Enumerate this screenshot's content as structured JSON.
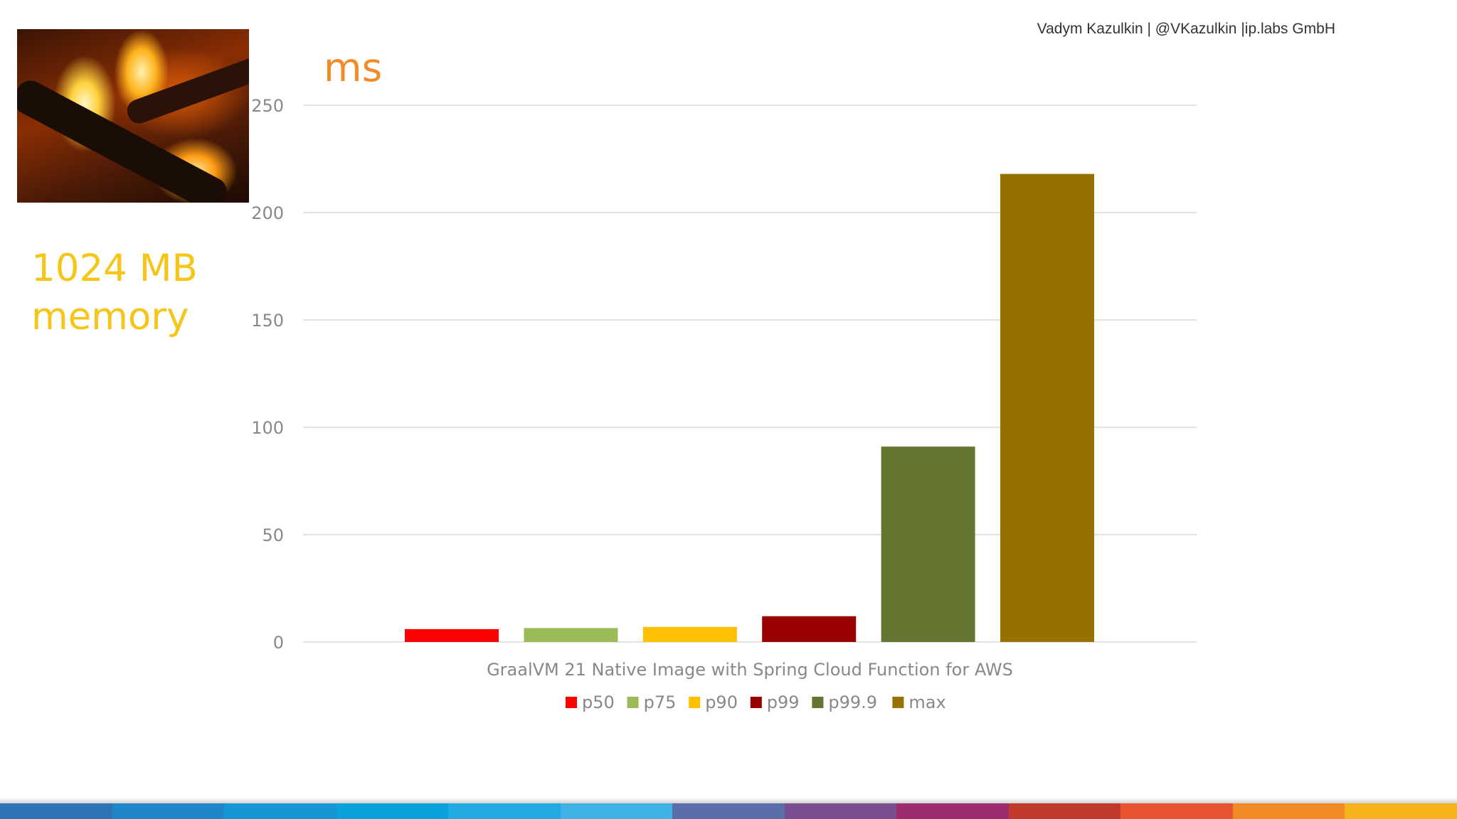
{
  "header": {
    "author": "Vadym Kazulkin | @VKazulkin |ip.labs GmbH"
  },
  "sidebar": {
    "photo_icon": "fire-photo",
    "memory_line1": "1024 MB",
    "memory_line2": "memory"
  },
  "chart_data": {
    "type": "bar",
    "unit_label": "ms",
    "xlabel": "GraalVM 21 Native Image with Spring Cloud Function for AWS",
    "ylim": [
      0,
      250
    ],
    "yticks": [
      0,
      50,
      100,
      150,
      200,
      250
    ],
    "grid": true,
    "legend_placement": "bottom",
    "series": [
      {
        "name": "p50",
        "values": [
          6.0
        ],
        "color": "#ff0000"
      },
      {
        "name": "p75",
        "values": [
          6.5
        ],
        "color": "#9bbb59"
      },
      {
        "name": "p90",
        "values": [
          7.0
        ],
        "color": "#ffc000"
      },
      {
        "name": "p99",
        "values": [
          12.0
        ],
        "color": "#990000"
      },
      {
        "name": "p99.9",
        "values": [
          91.0
        ],
        "color": "#647431"
      },
      {
        "name": "max",
        "values": [
          218.0
        ],
        "color": "#977100"
      }
    ]
  },
  "colors": {
    "unit_label": "#f28c28",
    "memory_text": "#f5c518",
    "axis_text": "#888888",
    "gridline": "#d9d9d9",
    "footer_stripe": [
      "#2e75b6",
      "#1f86c8",
      "#1497d4",
      "#0aa2dc",
      "#21a9e1",
      "#3fb3e6",
      "#5a6ea9",
      "#7b4f8f",
      "#9b2d6f",
      "#c0392b",
      "#e8542f",
      "#f08a24",
      "#f5b21a"
    ]
  }
}
